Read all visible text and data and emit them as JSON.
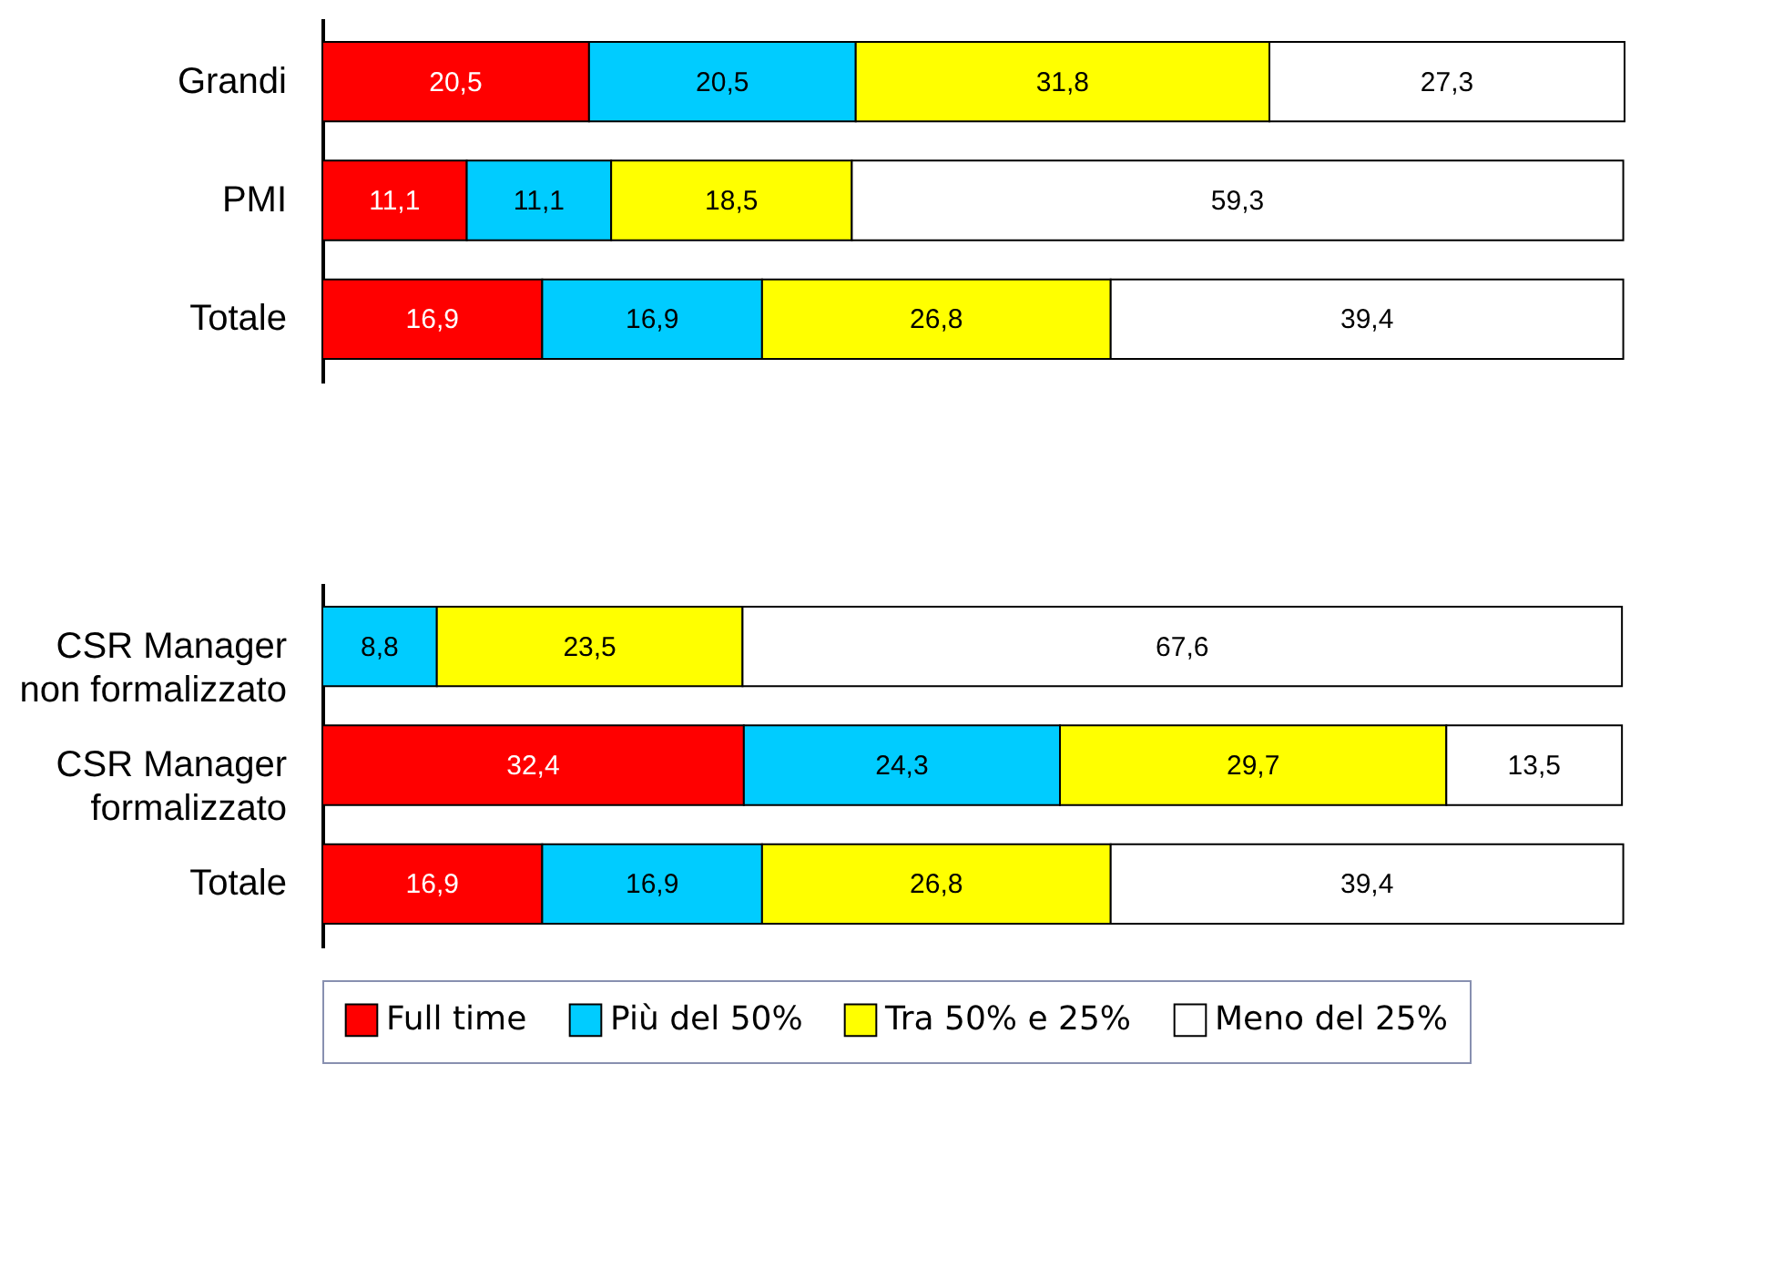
{
  "chart_data": [
    {
      "type": "bar",
      "orientation": "horizontal",
      "stacked": true,
      "legend": "bottom",
      "categories": [
        "Grandi",
        "PMI",
        "Totale"
      ],
      "series": [
        {
          "name": "Full time",
          "color": "#ff0000",
          "values": [
            20.5,
            11.1,
            16.9
          ],
          "value_labels": [
            "20,5",
            "11,1",
            "16,9"
          ]
        },
        {
          "name": "Più del 50%",
          "color": "#00ccff",
          "values": [
            20.5,
            11.1,
            16.9
          ],
          "value_labels": [
            "20,5",
            "11,1",
            "16,9"
          ]
        },
        {
          "name": "Tra 50% e 25%",
          "color": "#ffff00",
          "values": [
            31.8,
            18.5,
            26.8
          ],
          "value_labels": [
            "31,8",
            "18,5",
            "26,8"
          ]
        },
        {
          "name": "Meno del 25%",
          "color": "#ffffff",
          "values": [
            27.3,
            59.3,
            39.4
          ],
          "value_labels": [
            "27,3",
            "59,3",
            "39,4"
          ]
        }
      ]
    },
    {
      "type": "bar",
      "orientation": "horizontal",
      "stacked": true,
      "legend": "bottom",
      "categories": [
        "CSR Manager non formalizzato",
        "CSR Manager formalizzato",
        "Totale"
      ],
      "series": [
        {
          "name": "Full time",
          "color": "#ff0000",
          "values": [
            null,
            32.4,
            16.9
          ],
          "value_labels": [
            null,
            "32,4",
            "16,9"
          ]
        },
        {
          "name": "Più del 50%",
          "color": "#00ccff",
          "values": [
            8.8,
            24.3,
            16.9
          ],
          "value_labels": [
            "8,8",
            "24,3",
            "16,9"
          ]
        },
        {
          "name": "Tra 50% e 25%",
          "color": "#ffff00",
          "values": [
            23.5,
            29.7,
            26.8
          ],
          "value_labels": [
            "23,5",
            "29,7",
            "26,8"
          ]
        },
        {
          "name": "Meno del 25%",
          "color": "#ffffff",
          "values": [
            67.6,
            13.5,
            39.4
          ],
          "value_labels": [
            "67,6",
            "13,5",
            "39,4"
          ]
        }
      ]
    }
  ]
}
